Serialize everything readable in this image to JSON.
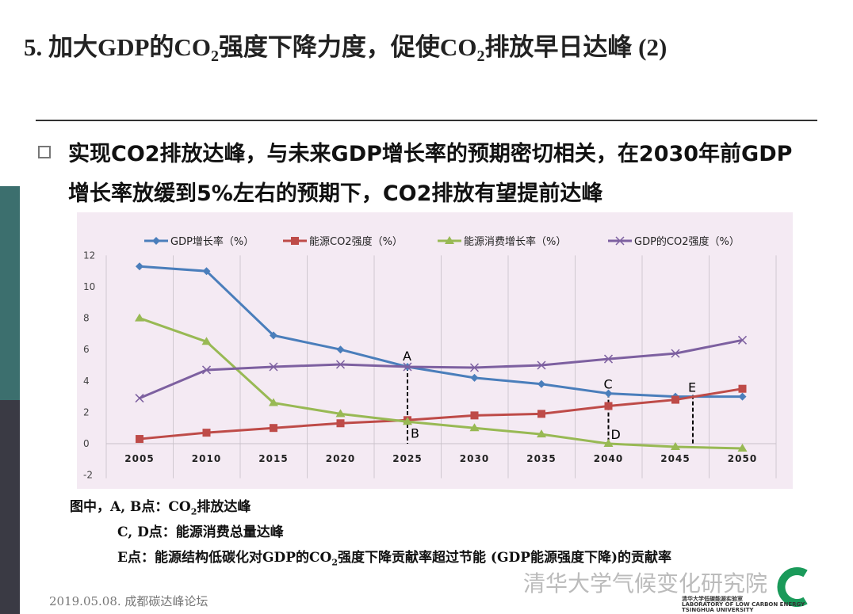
{
  "title": {
    "pre": "5. 加大GDP的CO",
    "sub1": "2",
    "mid": "强度下降力度，促使CO",
    "sub2": "2",
    "post": "排放早日达峰 (2)"
  },
  "bullet": "实现CO2排放达峰，与未来GDP增长率的预期密切相关，在2030年前GDP增长率放缓到5%左右的预期下，CO2排放有望提前达峰",
  "captions": {
    "line1_pre": "图中，A, B点：CO",
    "line1_sub": "2",
    "line1_post": "排放达峰",
    "line2": "C, D点：能源消费总量达峰",
    "line3_pre": "E点：能源结构低碳化对GDP的CO",
    "line3_sub": "2",
    "line3_post": "强度下降贡献率超过节能 (GDP能源强度下降)的贡献率"
  },
  "footer": "2019.05.08. 成都碳达峰论坛",
  "watermark": "清华大学气候变化研究院",
  "logo_text": [
    "清华大学低碳能源实验室",
    "LABORATORY OF LOW CARBON ENERGY",
    "TSINGHUA UNIVERSITY"
  ],
  "chart_data": {
    "type": "line",
    "x": [
      2005,
      2010,
      2015,
      2020,
      2025,
      2030,
      2035,
      2040,
      2045,
      2050
    ],
    "ylim": [
      -2,
      12
    ],
    "yticks": [
      -2,
      0,
      2,
      4,
      6,
      8,
      10,
      12
    ],
    "grid": "vertical",
    "legend": "top",
    "series": [
      {
        "name": "GDP增长率（%）",
        "color": "#4a7ebb",
        "marker": "diamond",
        "values": [
          11.3,
          11.0,
          6.9,
          6.0,
          4.9,
          4.2,
          3.8,
          3.2,
          3.0,
          3.0
        ]
      },
      {
        "name": "能源CO2强度（%）",
        "color": "#be4b48",
        "marker": "square",
        "values": [
          0.3,
          0.7,
          1.0,
          1.3,
          1.5,
          1.8,
          1.9,
          2.4,
          2.8,
          3.5
        ]
      },
      {
        "name": "能源消费增长率（%）",
        "color": "#98b954",
        "marker": "triangle",
        "values": [
          8.0,
          6.5,
          2.6,
          1.9,
          1.4,
          1.0,
          0.6,
          0.0,
          -0.2,
          -0.3
        ]
      },
      {
        "name": "GDP的CO2强度（%）",
        "color": "#7d60a0",
        "marker": "x",
        "values": [
          2.9,
          4.7,
          4.9,
          5.05,
          4.9,
          4.85,
          5.0,
          5.4,
          5.75,
          6.6
        ]
      }
    ],
    "annotations": [
      {
        "label": "A",
        "x": 2025,
        "y": 4.9,
        "line_to": 0
      },
      {
        "label": "B",
        "x": 2025,
        "y": 1.4
      },
      {
        "label": "C",
        "x": 2040,
        "y": 3.2,
        "line_to": 0
      },
      {
        "label": "D",
        "x": 2040,
        "y": 0.0
      },
      {
        "label": "E",
        "x": 2046.3,
        "y": 3.1,
        "line_to": 0
      }
    ]
  }
}
